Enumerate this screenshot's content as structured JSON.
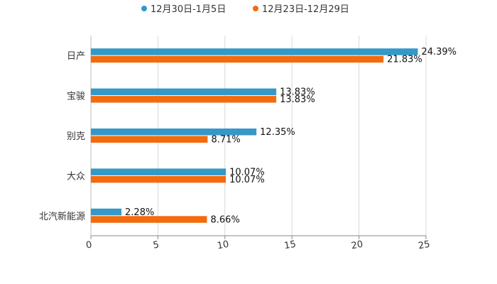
{
  "chart_data": {
    "type": "bar",
    "orientation": "horizontal",
    "title": "",
    "xlabel": "",
    "ylabel": "",
    "xlim": [
      0,
      25
    ],
    "x_ticks": [
      "0",
      "5",
      "10",
      "15",
      "20",
      "25"
    ],
    "x_tick_values": [
      0,
      5,
      10,
      15,
      20,
      25
    ],
    "grid": true,
    "legend_position": "top",
    "categories": [
      "日产",
      "宝骏",
      "别克",
      "大众",
      "北汽新能源"
    ],
    "series": [
      {
        "name": "12月30日-1月5日",
        "color": "#3498c8",
        "values": [
          24.39,
          13.83,
          12.35,
          10.07,
          2.28
        ],
        "labels": [
          "24.39%",
          "13.83%",
          "12.35%",
          "10.07%",
          "2.28%"
        ]
      },
      {
        "name": "12月23日-12月29日",
        "color": "#f26b0f",
        "values": [
          21.83,
          13.83,
          8.71,
          10.07,
          8.66
        ],
        "labels": [
          "21.83%",
          "13.83%",
          "8.71%",
          "10.07%",
          "8.66%"
        ]
      }
    ],
    "colors": {
      "grid": "#d9d9d9",
      "axis": "#888888",
      "text": "#333333"
    }
  }
}
